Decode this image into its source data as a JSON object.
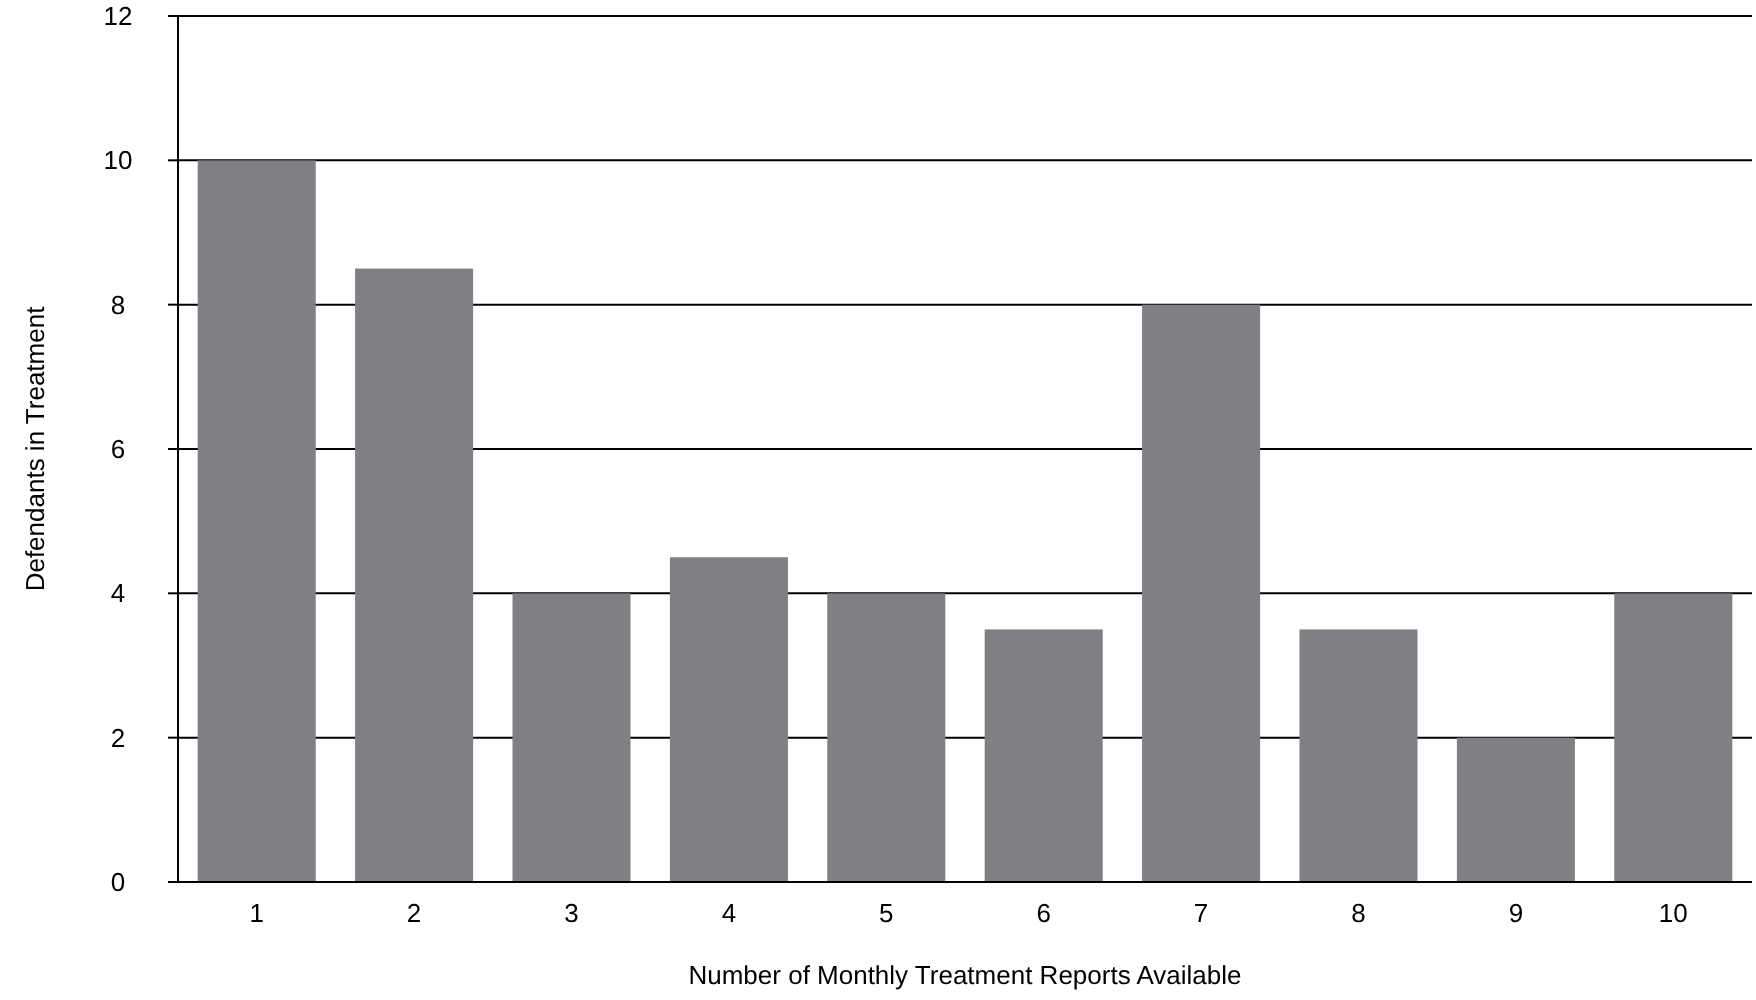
{
  "chart_data": {
    "type": "bar",
    "xlabel": "Number of Monthly Treatment Reports Available",
    "ylabel": "Defendants in Treatment",
    "categories": [
      "1",
      "2",
      "3",
      "4",
      "5",
      "6",
      "7",
      "8",
      "9",
      "10"
    ],
    "values": [
      10,
      8.5,
      4,
      4.5,
      4,
      3.5,
      8,
      3.5,
      2,
      4
    ],
    "color": "#808084",
    "ylim": [
      0,
      12
    ],
    "yticks": [
      0,
      2,
      4,
      6,
      8,
      10,
      12
    ],
    "grid": "y"
  }
}
